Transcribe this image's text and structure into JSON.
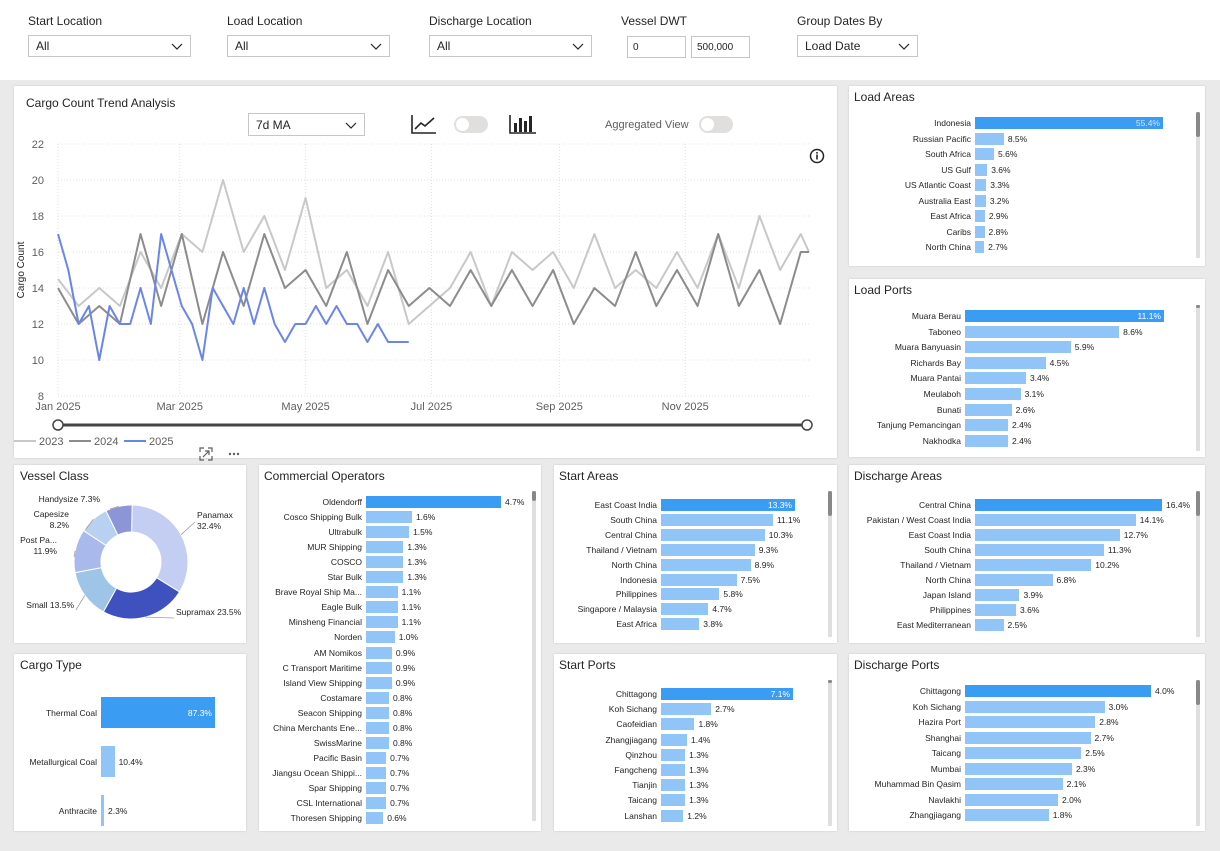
{
  "filters": {
    "start_location": {
      "label": "Start Location",
      "value": "All"
    },
    "load_location": {
      "label": "Load Location",
      "value": "All"
    },
    "discharge_location": {
      "label": "Discharge Location",
      "value": "All"
    },
    "vessel_dwt": {
      "label": "Vessel DWT",
      "min": "0",
      "max": "500,000"
    },
    "group_dates": {
      "label": "Group Dates By",
      "value": "Load Date"
    }
  },
  "trend": {
    "title": "Cargo Count Trend Analysis",
    "ma_select": "7d MA",
    "aggregated_label": "Aggregated View",
    "info_icon": "info-icon",
    "line_icon": "line-chart-icon",
    "bar_icon": "bar-chart-icon",
    "focus_icon": "focus-mode-icon",
    "more_icon": "more-options-icon"
  },
  "colors": {
    "accent": "#3b9cf4",
    "bar": "#91c5f8",
    "s2023": "#c8c8c8",
    "s2024": "#8c8c8c",
    "s2025": "#6b86e8"
  },
  "chart_data": [
    {
      "type": "line",
      "title": "Cargo Count Trend Analysis",
      "ylabel": "Cargo Count",
      "xlabel": "",
      "ylim": [
        8,
        22
      ],
      "yticks": [
        8,
        10,
        12,
        14,
        16,
        18,
        20,
        22
      ],
      "xticks": [
        "Jan 2025",
        "Mar 2025",
        "May 2025",
        "Jul 2025",
        "Sep 2025",
        "Nov 2025"
      ],
      "x_range_days": [
        0,
        364
      ],
      "xtick_days": [
        0,
        59,
        120,
        181,
        243,
        304
      ],
      "grid": true,
      "legend": "bottom-left",
      "series": [
        {
          "name": "2023",
          "color": "#c8c8c8",
          "x": [
            0,
            10,
            20,
            30,
            40,
            50,
            60,
            70,
            80,
            90,
            100,
            110,
            120,
            130,
            140,
            150,
            160,
            170,
            180,
            190,
            200,
            210,
            220,
            230,
            240,
            250,
            260,
            270,
            280,
            290,
            300,
            310,
            320,
            330,
            340,
            350,
            360,
            364
          ],
          "values": [
            14.5,
            13,
            14,
            13,
            16,
            14,
            17,
            16,
            20,
            16,
            18,
            15,
            19,
            14,
            15,
            13,
            16,
            12,
            13,
            14,
            16,
            13,
            16,
            15,
            16,
            14,
            17,
            14,
            15,
            14,
            16,
            14,
            17,
            14,
            18,
            15,
            17,
            16
          ]
        },
        {
          "name": "2024",
          "color": "#8c8c8c",
          "x": [
            0,
            10,
            20,
            30,
            40,
            50,
            60,
            70,
            80,
            90,
            100,
            110,
            120,
            130,
            140,
            150,
            160,
            170,
            180,
            190,
            200,
            210,
            220,
            230,
            240,
            250,
            260,
            270,
            280,
            290,
            300,
            310,
            320,
            330,
            340,
            350,
            360,
            364
          ],
          "values": [
            14,
            12,
            13,
            12,
            17,
            13,
            17,
            12,
            16,
            13,
            17,
            14,
            15,
            13,
            16,
            12,
            15,
            13,
            14,
            13,
            15,
            13,
            15,
            13,
            15,
            12,
            14,
            13,
            16,
            13,
            15,
            13,
            17,
            13,
            15,
            12,
            16,
            16
          ]
        },
        {
          "name": "2025",
          "color": "#6b86e8",
          "x": [
            0,
            5,
            10,
            15,
            20,
            25,
            30,
            35,
            40,
            45,
            50,
            55,
            60,
            65,
            70,
            75,
            80,
            85,
            90,
            95,
            100,
            105,
            110,
            115,
            120,
            125,
            130,
            135,
            140,
            145,
            150,
            155,
            160,
            165,
            170
          ],
          "values": [
            17,
            15,
            12,
            13,
            10,
            13,
            12,
            12,
            14,
            12,
            17,
            15,
            13,
            12,
            10,
            14,
            13,
            12,
            14,
            12,
            14,
            12,
            11,
            12,
            12,
            13,
            12,
            13,
            12,
            12,
            11,
            12,
            11,
            11,
            11
          ]
        }
      ]
    },
    {
      "type": "pie",
      "title": "Vessel Class",
      "donut": true,
      "categories": [
        "Panamax",
        "Supramax",
        "Small",
        "Post Pa...",
        "Capesize",
        "Handysize"
      ],
      "values": [
        32.4,
        23.5,
        13.5,
        11.9,
        8.2,
        7.3
      ],
      "labels": [
        "Panamax 32.4%",
        "Supramax 23.5%",
        "Small 13.5%",
        "Post Pa... 11.9%",
        "Capesize 8.2%",
        "Handysize 7.3%"
      ],
      "colors": [
        "#c4cdf2",
        "#3f51bf",
        "#9ec4e8",
        "#a9b9ec",
        "#b8d1f0",
        "#8c96d6"
      ]
    },
    {
      "type": "bar",
      "title": "Load Areas",
      "categories": [
        "Indonesia",
        "Russian Pacific",
        "South Africa",
        "US Gulf",
        "US Atlantic Coast",
        "Australia East",
        "East Africa",
        "Caribs",
        "North China"
      ],
      "values": [
        55.4,
        8.5,
        5.6,
        3.6,
        3.3,
        3.2,
        2.9,
        2.8,
        2.7
      ],
      "labels": [
        "55.4%",
        "8.5%",
        "5.6%",
        "3.6%",
        "3.3%",
        "3.2%",
        "2.9%",
        "2.8%",
        "2.7%"
      ]
    },
    {
      "type": "bar",
      "title": "Load Ports",
      "categories": [
        "Muara Berau",
        "Taboneo",
        "Muara Banyuasin",
        "Richards Bay",
        "Muara Pantai",
        "Meulaboh",
        "Bunati",
        "Tanjung Pemancingan",
        "Nakhodka"
      ],
      "values": [
        11.1,
        8.6,
        5.9,
        4.5,
        3.4,
        3.1,
        2.6,
        2.4,
        2.4
      ],
      "labels": [
        "11.1%",
        "8.6%",
        "5.9%",
        "4.5%",
        "3.4%",
        "3.1%",
        "2.6%",
        "2.4%",
        "2.4%"
      ]
    },
    {
      "type": "bar",
      "title": "Commercial Operators",
      "categories": [
        "Oldendorff",
        "Cosco Shipping Bulk",
        "Ultrabulk",
        "MUR Shipping",
        "COSCO",
        "Star Bulk",
        "Brave Royal Ship Ma...",
        "Eagle Bulk",
        "Minsheng Financial",
        "Norden",
        "AM Nomikos",
        "C Transport Maritime",
        "Island View Shipping",
        "Costamare",
        "Seacon Shipping",
        "China Merchants Ene...",
        "SwissMarine",
        "Pacific Basin",
        "Jiangsu Ocean Shippi...",
        "Spar Shipping",
        "CSL International",
        "Thoresen Shipping"
      ],
      "values": [
        4.7,
        1.6,
        1.5,
        1.3,
        1.3,
        1.3,
        1.1,
        1.1,
        1.1,
        1.0,
        0.9,
        0.9,
        0.9,
        0.8,
        0.8,
        0.8,
        0.8,
        0.7,
        0.7,
        0.7,
        0.7,
        0.6
      ],
      "labels": [
        "4.7%",
        "1.6%",
        "1.5%",
        "1.3%",
        "1.3%",
        "1.3%",
        "1.1%",
        "1.1%",
        "1.1%",
        "1.0%",
        "0.9%",
        "0.9%",
        "0.9%",
        "0.8%",
        "0.8%",
        "0.8%",
        "0.8%",
        "0.7%",
        "0.7%",
        "0.7%",
        "0.7%",
        "0.6%"
      ]
    },
    {
      "type": "bar",
      "title": "Start Areas",
      "categories": [
        "East Coast India",
        "South China",
        "Central China",
        "Thailand / Vietnam",
        "North China",
        "Indonesia",
        "Philippines",
        "Singapore / Malaysia",
        "East Africa"
      ],
      "values": [
        13.3,
        11.1,
        10.3,
        9.3,
        8.9,
        7.5,
        5.8,
        4.7,
        3.8
      ],
      "labels": [
        "13.3%",
        "11.1%",
        "10.3%",
        "9.3%",
        "8.9%",
        "7.5%",
        "5.8%",
        "4.7%",
        "3.8%"
      ]
    },
    {
      "type": "bar",
      "title": "Discharge Areas",
      "categories": [
        "Central China",
        "Pakistan / West Coast India",
        "East Coast India",
        "South China",
        "Thailand / Vietnam",
        "North China",
        "Japan Island",
        "Philippines",
        "East Mediterranean"
      ],
      "values": [
        16.4,
        14.1,
        12.7,
        11.3,
        10.2,
        6.8,
        3.9,
        3.6,
        2.5
      ],
      "labels": [
        "16.4%",
        "14.1%",
        "12.7%",
        "11.3%",
        "10.2%",
        "6.8%",
        "3.9%",
        "3.6%",
        "2.5%"
      ]
    },
    {
      "type": "bar",
      "title": "Cargo Type",
      "categories": [
        "Thermal Coal",
        "Metallurgical Coal",
        "Anthracite"
      ],
      "values": [
        87.3,
        10.4,
        2.3
      ],
      "labels": [
        "87.3%",
        "10.4%",
        "2.3%"
      ]
    },
    {
      "type": "bar",
      "title": "Start Ports",
      "categories": [
        "Chittagong",
        "Koh Sichang",
        "Caofeidian",
        "Zhangjiagang",
        "Qinzhou",
        "Fangcheng",
        "Tianjin",
        "Taicang",
        "Lanshan"
      ],
      "values": [
        7.1,
        2.7,
        1.8,
        1.4,
        1.3,
        1.3,
        1.3,
        1.3,
        1.2
      ],
      "labels": [
        "7.1%",
        "2.7%",
        "1.8%",
        "1.4%",
        "1.3%",
        "1.3%",
        "1.3%",
        "1.3%",
        "1.2%"
      ]
    },
    {
      "type": "bar",
      "title": "Discharge Ports",
      "categories": [
        "Chittagong",
        "Koh Sichang",
        "Hazira Port",
        "Shanghai",
        "Taicang",
        "Mumbai",
        "Muhammad Bin Qasim",
        "Navlakhi",
        "Zhangjiagang"
      ],
      "values": [
        4.0,
        3.0,
        2.8,
        2.7,
        2.5,
        2.3,
        2.1,
        2.0,
        1.8
      ],
      "labels": [
        "4.0%",
        "3.0%",
        "2.8%",
        "2.7%",
        "2.5%",
        "2.3%",
        "2.1%",
        "2.0%",
        "1.8%"
      ]
    }
  ]
}
